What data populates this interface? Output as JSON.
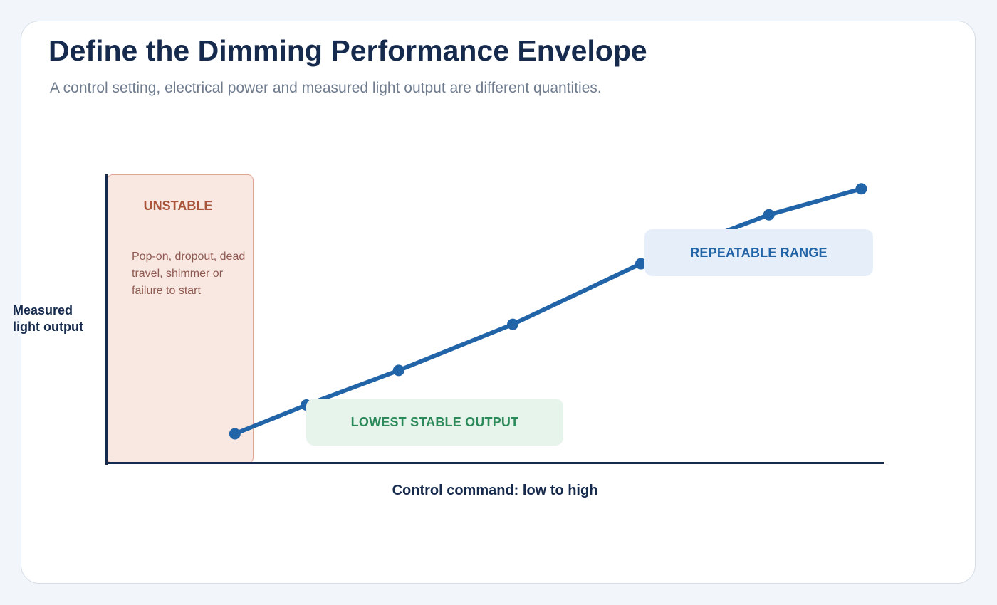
{
  "header": {
    "title": "Define the Dimming Performance Envelope",
    "subtitle": "A control setting, electrical power and measured light output are different quantities."
  },
  "zones": {
    "unstable": {
      "title": "UNSTABLE",
      "description": "Pop-on, dropout, dead travel, shimmer or failure to start"
    }
  },
  "callouts": {
    "lowest_stable": "LOWEST STABLE OUTPUT",
    "repeatable_range": "REPEATABLE RANGE"
  },
  "axes": {
    "y_label": "Measured light output",
    "x_label": "Control command: low to high"
  },
  "colors": {
    "curve": "#2264a8",
    "unstable_fill": "#f9e7e2",
    "unstable_text": "#a9533a",
    "lowest_fill": "#e6f4ec",
    "lowest_text": "#2c8a5a",
    "repeatable_fill": "#e6eff9",
    "repeatable_text": "#2264a8",
    "axis": "#152a4d"
  },
  "chart_data": {
    "type": "line",
    "x_scale": "relative",
    "y_scale": "relative",
    "xlim": [
      0,
      1
    ],
    "ylim": [
      0,
      1
    ],
    "series": [
      {
        "points": [
          {
            "x": 0.165,
            "y": 0.1
          },
          {
            "x": 0.257,
            "y": 0.2
          },
          {
            "x": 0.376,
            "y": 0.32
          },
          {
            "x": 0.523,
            "y": 0.48
          },
          {
            "x": 0.688,
            "y": 0.69
          },
          {
            "x": 0.853,
            "y": 0.86
          },
          {
            "x": 0.972,
            "y": 0.95
          }
        ]
      }
    ]
  }
}
